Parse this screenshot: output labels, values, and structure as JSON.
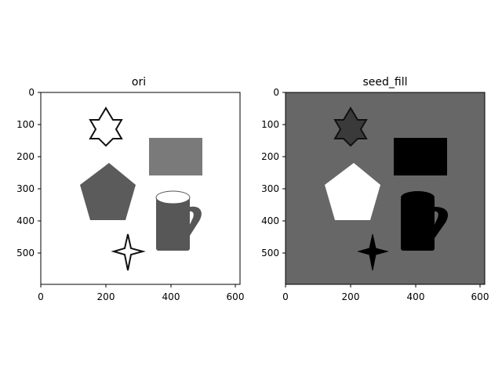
{
  "panels": [
    {
      "title": "ori",
      "image_bg": "#ffffff",
      "x_ticks": [
        "0",
        "200",
        "400",
        "600"
      ],
      "y_ticks": [
        "0",
        "100",
        "200",
        "300",
        "400",
        "500"
      ],
      "colors": {
        "star_fill": "#ffffff",
        "star_stroke": "#111111",
        "rect": "#7a7a7a",
        "pentagon": "#5b5b5b",
        "mug": "#575757",
        "mug_top": "#ffffff",
        "sparkle_fill": "#ffffff",
        "sparkle_stroke": "#111111"
      }
    },
    {
      "title": "seed_fill",
      "image_bg": "#676767",
      "x_ticks": [
        "0",
        "200",
        "400",
        "600"
      ],
      "y_ticks": [
        "0",
        "100",
        "200",
        "300",
        "400",
        "500"
      ],
      "colors": {
        "star_fill": "#3a3a3a",
        "star_stroke": "#111111",
        "rect": "#000000",
        "pentagon": "#ffffff",
        "mug": "#000000",
        "mug_top": "#000000",
        "sparkle_fill": "#000000",
        "sparkle_stroke": "#000000"
      }
    }
  ]
}
